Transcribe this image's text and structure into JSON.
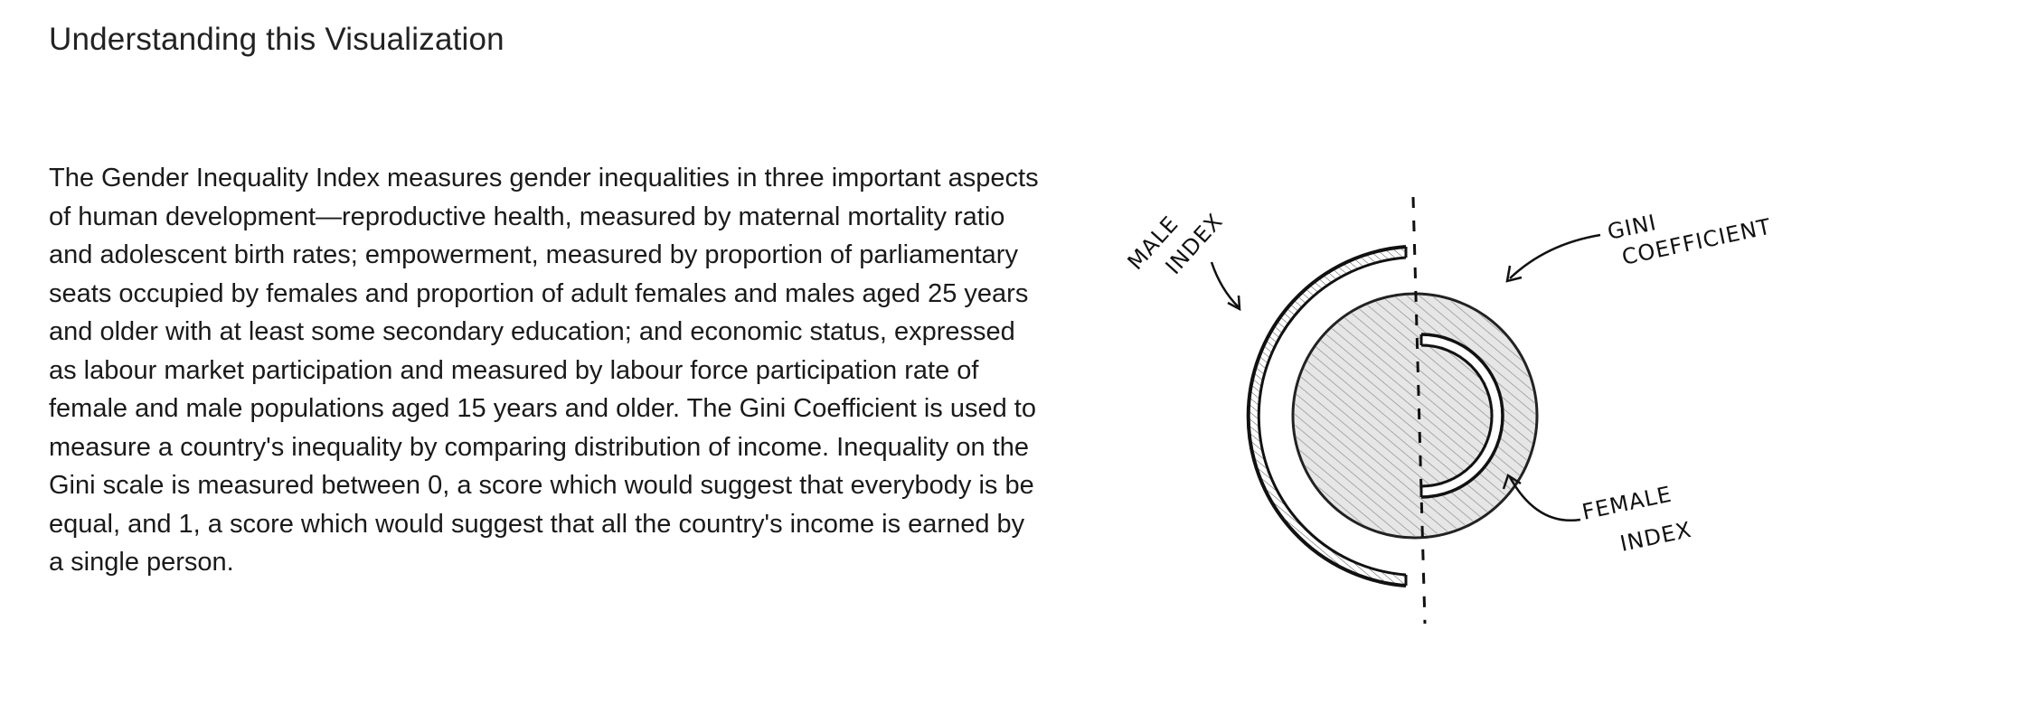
{
  "header": {
    "title": "Understanding this Visualization"
  },
  "description": {
    "text": "The Gender Inequality Index measures gender inequalities in three important aspects of human development—reproductive health, measured by maternal mortality ratio and adolescent birth rates; empowerment, measured by proportion of parliamentary seats occupied by females and proportion of adult females and males aged 25 years and older with at least some secondary education; and economic status, expressed as labour market participation and measured by labour force participation rate of female and male populations aged 15 years and older. The Gini Coefficient is used to measure a country's inequality by comparing distribution of income. Inequality on the Gini scale is measured between 0, a score which would suggest that everybody is be equal, and 1, a score which would suggest that all the country's income is earned by a single person."
  },
  "diagram": {
    "labels": {
      "male_line1": "MALE",
      "male_line2": "INDEX",
      "gini_line1": "GINI",
      "gini_line2": "COEFFICIENT",
      "female_line1": "FEMALE",
      "female_line2": "INDEX"
    },
    "colors": {
      "ink": "#111111",
      "shade": "#cfcfcf",
      "paper": "#ffffff"
    }
  }
}
